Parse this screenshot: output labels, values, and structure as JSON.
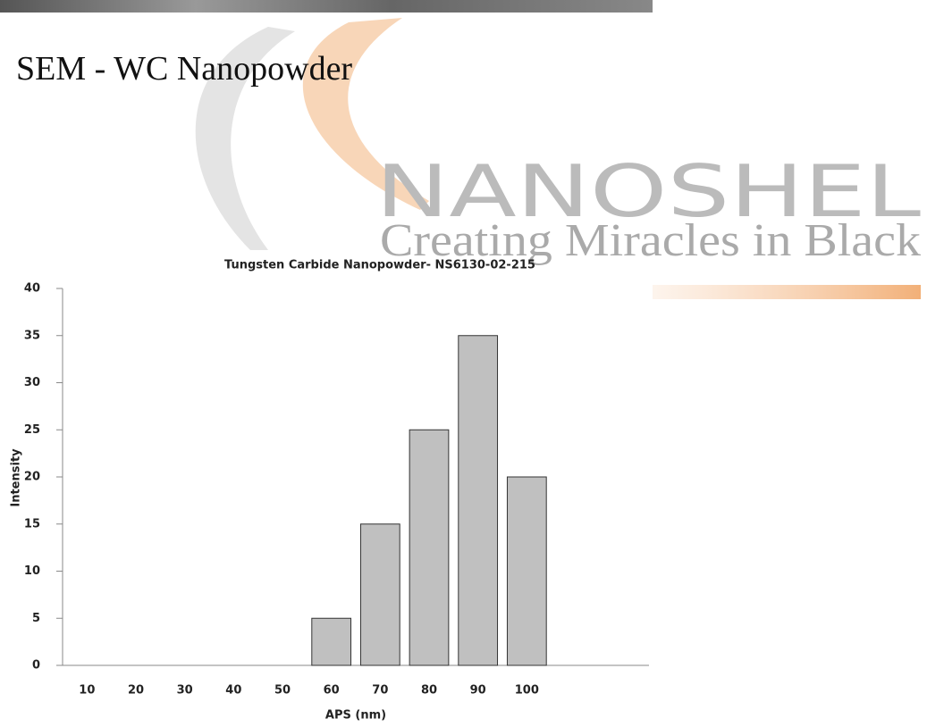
{
  "header": {
    "title": "SEM - WC Nanopowder"
  },
  "watermark": {
    "brand": "NANOSHEL",
    "tagline": "Creating Miracles in Black"
  },
  "chart_data": {
    "type": "bar",
    "title": "Tungsten Carbide Nanopowder- NS6130-02-215",
    "x_label": "APS (nm)",
    "y_label": "Intensity",
    "categories": [
      10,
      20,
      30,
      40,
      50,
      60,
      70,
      80,
      90,
      100,
      null,
      null
    ],
    "values": [
      0,
      0,
      0,
      0,
      0,
      5,
      15,
      25,
      35,
      20,
      null,
      null
    ],
    "color": "#c0c0c0",
    "ylim": [
      0,
      40
    ],
    "yticks": [
      0,
      5,
      10,
      15,
      20,
      25,
      30,
      35,
      40
    ],
    "grid": false
  }
}
